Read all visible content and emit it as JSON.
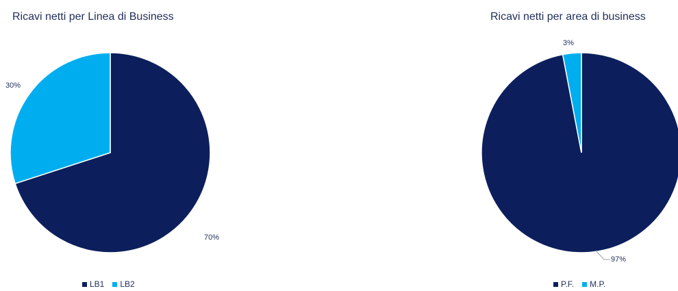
{
  "chart_data": [
    {
      "type": "pie",
      "title": "Ricavi netti per Linea di Business",
      "categories": [
        "LB1",
        "LB2"
      ],
      "values": [
        70,
        30
      ],
      "labels": [
        "70%",
        "30%"
      ],
      "colors": [
        "#0c1f5c",
        "#00aeef"
      ],
      "legend": "bottom"
    },
    {
      "type": "pie",
      "title": "Ricavi netti per area di business",
      "categories": [
        "P.F.",
        "M.P."
      ],
      "values": [
        97,
        3
      ],
      "labels": [
        "97%",
        "3%"
      ],
      "colors": [
        "#0c1f5c",
        "#00aeef"
      ],
      "legend": "bottom"
    }
  ]
}
